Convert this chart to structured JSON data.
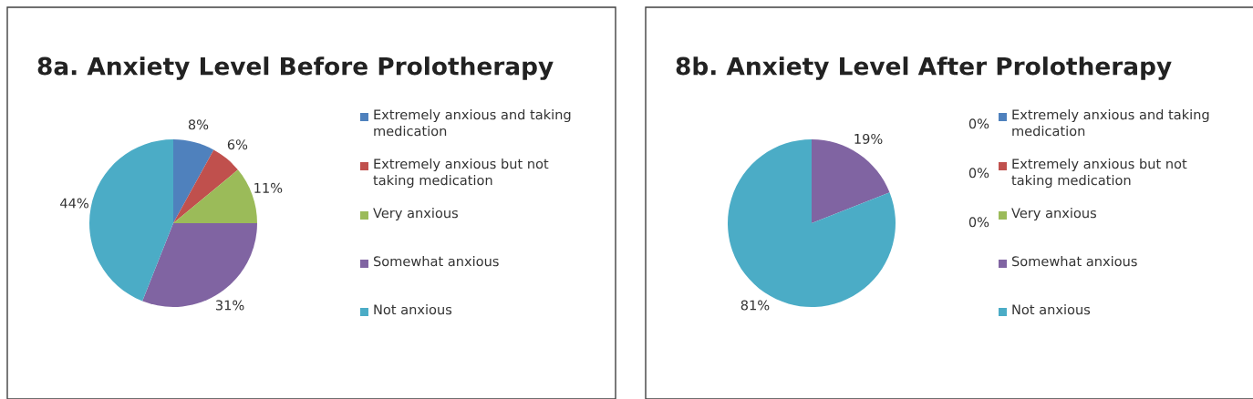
{
  "chart_data": [
    {
      "type": "pie",
      "title": "8a. Anxiety Level Before Prolotherapy",
      "categories": [
        "Extremely anxious and taking medication",
        "Extremely anxious but not taking medication",
        "Very anxious",
        "Somewhat anxious",
        "Not anxious"
      ],
      "values": [
        8,
        6,
        11,
        31,
        44
      ],
      "colors": [
        "#4f81bd",
        "#c0504d",
        "#9bbb59",
        "#8064a2",
        "#4bacc6"
      ],
      "value_labels": [
        "8%",
        "6%",
        "11%",
        "31%",
        "44%"
      ],
      "legend": "right"
    },
    {
      "type": "pie",
      "title": "8b. Anxiety Level After Prolotherapy",
      "categories": [
        "Extremely anxious and taking medication",
        "Extremely anxious but not taking medication",
        "Very anxious",
        "Somewhat anxious",
        "Not anxious"
      ],
      "values": [
        0,
        0,
        0,
        19,
        81
      ],
      "colors": [
        "#4f81bd",
        "#c0504d",
        "#9bbb59",
        "#8064a2",
        "#4bacc6"
      ],
      "value_labels": [
        "0%",
        "0%",
        "0%",
        "19%",
        "81%"
      ],
      "legend": "right"
    }
  ]
}
